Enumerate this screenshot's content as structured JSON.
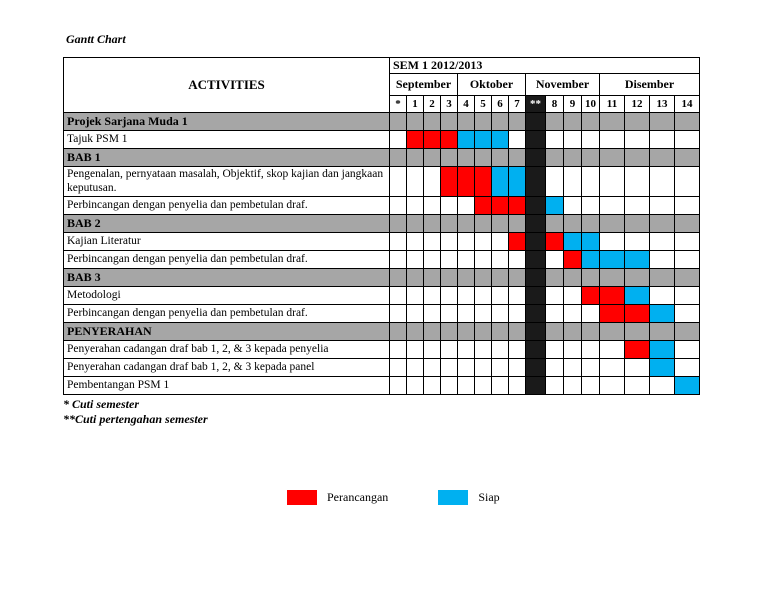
{
  "page": {
    "title": "Gantt Chart"
  },
  "chart_data": {
    "type": "table",
    "subtype": "gantt",
    "title": "Gantt Chart",
    "activities_header": "ACTIVITIES",
    "sem_header": "SEM 1 2012/2013",
    "months": [
      {
        "label": "September",
        "span": 4
      },
      {
        "label": "Oktober",
        "span": 4
      },
      {
        "label": "November",
        "span": 4
      },
      {
        "label": "Disember",
        "span": 4
      }
    ],
    "week_labels": [
      "*",
      "1",
      "2",
      "3",
      "4",
      "5",
      "6",
      "7",
      "**",
      "8",
      "9",
      "10",
      "11",
      "12",
      "13",
      "14"
    ],
    "break_week": "**",
    "rows": [
      {
        "label": "Projek Sarjana Muda 1",
        "type": "section"
      },
      {
        "label": "Tajuk PSM 1",
        "type": "task",
        "planned": [
          "1",
          "2",
          "3"
        ],
        "done": [
          "4",
          "5",
          "6"
        ]
      },
      {
        "label": "BAB 1",
        "type": "section"
      },
      {
        "label": "Pengenalan, pernyataan masalah, Objektif, skop kajian dan jangkaan keputusan.",
        "type": "task",
        "planned": [
          "3",
          "4",
          "5"
        ],
        "done": [
          "6",
          "7"
        ]
      },
      {
        "label": "Perbincangan dengan penyelia dan pembetulan draf.",
        "type": "task",
        "planned": [
          "5",
          "6",
          "7"
        ],
        "done": [
          "8"
        ]
      },
      {
        "label": "BAB 2",
        "type": "section"
      },
      {
        "label": "Kajian Literatur",
        "type": "task",
        "planned": [
          "7",
          "8"
        ],
        "done": [
          "9",
          "10"
        ]
      },
      {
        "label": "Perbincangan dengan penyelia dan pembetulan draf.",
        "type": "task",
        "planned": [
          "9"
        ],
        "done": [
          "10",
          "11",
          "12"
        ]
      },
      {
        "label": "BAB 3",
        "type": "section"
      },
      {
        "label": "Metodologi",
        "type": "task",
        "planned": [
          "10",
          "11"
        ],
        "done": [
          "12"
        ]
      },
      {
        "label": "Perbincangan dengan penyelia dan pembetulan draf.",
        "type": "task",
        "planned": [
          "11",
          "12"
        ],
        "done": [
          "13"
        ]
      },
      {
        "label": "PENYERAHAN",
        "type": "section"
      },
      {
        "label": "Penyerahan cadangan draf bab 1, 2, & 3 kepada penyelia",
        "type": "task",
        "planned": [
          "12"
        ],
        "done": [
          "13"
        ]
      },
      {
        "label": "Penyerahan cadangan draf bab 1, 2, & 3 kepada panel",
        "type": "task",
        "planned": [],
        "done": [
          "13"
        ]
      },
      {
        "label": "Pembentangan PSM 1",
        "type": "task",
        "planned": [],
        "done": [
          "14"
        ]
      }
    ],
    "legend": [
      {
        "label": "Perancangan",
        "color": "#FF0000"
      },
      {
        "label": "Siap",
        "color": "#00B0F0"
      }
    ]
  },
  "footnotes": {
    "line1": "* Cuti semester",
    "line2": "**Cuti pertengahan semester"
  },
  "colors": {
    "planned": "#FF0000",
    "done": "#00B0F0",
    "section_bg": "#A6A6A6",
    "break_bg": "#1A1A1A",
    "border": "#000000"
  }
}
